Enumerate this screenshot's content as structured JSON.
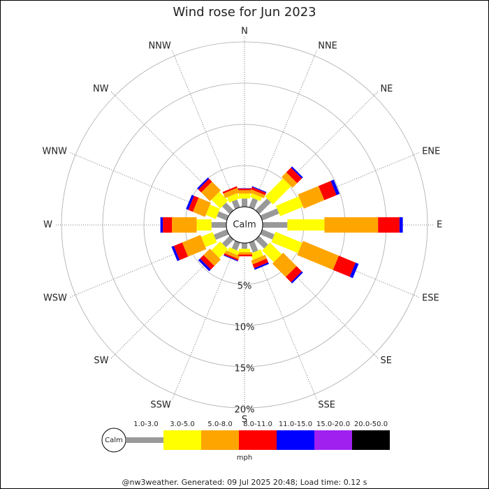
{
  "chart_data": {
    "type": "windrose",
    "title": "Wind rose for Jun 2023",
    "directions": [
      "N",
      "NNE",
      "NE",
      "ENE",
      "E",
      "ESE",
      "SE",
      "SSE",
      "S",
      "SSW",
      "SW",
      "WSW",
      "W",
      "WNW",
      "NW",
      "NNW"
    ],
    "calm_label": "Calm",
    "rlim": [
      0,
      20
    ],
    "rticks": [
      {
        "value": 5,
        "label": "5%"
      },
      {
        "value": 10,
        "label": "10%"
      },
      {
        "value": 15,
        "label": "15%"
      },
      {
        "value": 20,
        "label": "20%"
      }
    ],
    "series": [
      {
        "name": "1.0-3.0",
        "color": "#999999",
        "values": [
          1.0,
          1.2,
          2.0,
          2.2,
          3.0,
          1.6,
          1.5,
          1.3,
          0.7,
          1.0,
          1.3,
          1.7,
          1.8,
          1.3,
          1.3,
          1.0
        ]
      },
      {
        "name": "3.0-5.0",
        "color": "#ffff00",
        "values": [
          0.6,
          0.5,
          3.1,
          3.0,
          4.5,
          3.5,
          2.0,
          0.8,
          0.4,
          0.5,
          1.5,
          1.5,
          1.8,
          1.3,
          1.5,
          0.7
        ]
      },
      {
        "name": "5.0-8.0",
        "color": "#ffa500",
        "values": [
          0.4,
          0.4,
          0.8,
          2.7,
          6.5,
          4.7,
          2.3,
          0.5,
          0.3,
          0.4,
          1.1,
          2.4,
          3.0,
          1.6,
          1.5,
          0.6
        ]
      },
      {
        "name": "8.0-11.0",
        "color": "#ff0000",
        "values": [
          0.2,
          0.3,
          0.8,
          1.6,
          2.6,
          2.2,
          0.9,
          0.5,
          0.2,
          0.2,
          0.6,
          1.1,
          1.1,
          0.6,
          0.5,
          0.2
        ]
      },
      {
        "name": "11.0-15.0",
        "color": "#0000ff",
        "values": [
          0.05,
          0.1,
          0.2,
          0.4,
          0.4,
          0.4,
          0.2,
          0.2,
          0,
          0.1,
          0.3,
          0.3,
          0.3,
          0.3,
          0.2,
          0
        ]
      },
      {
        "name": "15.0-20.0",
        "color": "#a020f0",
        "values": [
          0,
          0,
          0,
          0,
          0,
          0,
          0,
          0,
          0,
          0,
          0,
          0,
          0,
          0,
          0,
          0
        ]
      },
      {
        "name": "20.0-50.0",
        "color": "#000000",
        "values": [
          0,
          0,
          0,
          0,
          0,
          0,
          0,
          0,
          0,
          0,
          0,
          0,
          0,
          0,
          0,
          0
        ]
      }
    ],
    "unit": "mph",
    "footer": "@nw3weather. Generated: 09 Jul 2025 20:48; Load time: 0.12 s"
  }
}
